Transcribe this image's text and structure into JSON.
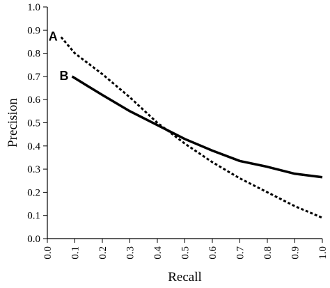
{
  "chart_data": {
    "type": "line",
    "xlabel": "Recall",
    "ylabel": "Precision",
    "xlim": [
      0.0,
      1.0
    ],
    "ylim": [
      0.0,
      1.0
    ],
    "x_ticks": [
      "0.0",
      "0.1",
      "0.2",
      "0.3",
      "0.4",
      "0.5",
      "0.6",
      "0.7",
      "0.8",
      "0.9",
      "1.0"
    ],
    "y_ticks": [
      "0.0",
      "0.1",
      "0.2",
      "0.3",
      "0.4",
      "0.5",
      "0.6",
      "0.7",
      "0.8",
      "0.9",
      "1.0"
    ],
    "grid": false,
    "series": [
      {
        "name": "A",
        "style": "dotted",
        "color": "#000000",
        "x": [
          0.05,
          0.1,
          0.2,
          0.3,
          0.4,
          0.5,
          0.6,
          0.7,
          0.8,
          0.9,
          1.0
        ],
        "y": [
          0.87,
          0.8,
          0.71,
          0.61,
          0.5,
          0.41,
          0.33,
          0.26,
          0.2,
          0.14,
          0.09
        ]
      },
      {
        "name": "B",
        "style": "solid",
        "color": "#000000",
        "x": [
          0.09,
          0.2,
          0.3,
          0.4,
          0.5,
          0.6,
          0.7,
          0.8,
          0.9,
          1.0
        ],
        "y": [
          0.7,
          0.62,
          0.55,
          0.49,
          0.43,
          0.38,
          0.335,
          0.31,
          0.28,
          0.265
        ]
      }
    ]
  }
}
